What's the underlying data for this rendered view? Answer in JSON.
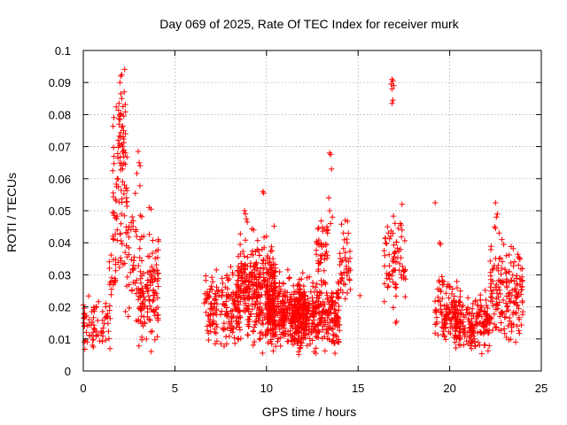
{
  "chart_data": {
    "type": "scatter",
    "title": "Day 069 of 2025, Rate Of TEC Index for receiver murk",
    "xlabel": "GPS time / hours",
    "ylabel": "ROTI / TECUs",
    "xlim": [
      0,
      25
    ],
    "ylim": [
      0,
      0.1
    ],
    "xticks": [
      "0",
      "5",
      "10",
      "15",
      "20",
      "25"
    ],
    "yticks": [
      "0",
      "0.01",
      "0.02",
      "0.03",
      "0.04",
      "0.05",
      "0.06",
      "0.07",
      "0.08",
      "0.09",
      "0.1"
    ],
    "grid": true,
    "marker": "+",
    "color": "#ff0000",
    "clusters": [
      {
        "x_range": [
          0.0,
          1.5
        ],
        "y_mean": 0.015,
        "y_spread": 0.004,
        "count": 70
      },
      {
        "x_range": [
          1.4,
          1.8
        ],
        "y_mean": 0.03,
        "y_spread": 0.004,
        "count": 20
      },
      {
        "x_range": [
          1.6,
          2.4
        ],
        "y_mean": 0.055,
        "y_spread": 0.012,
        "count": 70
      },
      {
        "x_range": [
          1.9,
          2.3
        ],
        "y_mean": 0.078,
        "y_spread": 0.008,
        "count": 25
      },
      {
        "x_range": [
          2.3,
          3.2
        ],
        "y_mean": 0.035,
        "y_spread": 0.01,
        "count": 50
      },
      {
        "x_range": [
          3.0,
          4.1
        ],
        "y_mean": 0.02,
        "y_spread": 0.007,
        "count": 90
      },
      {
        "x_range": [
          3.6,
          4.2
        ],
        "y_mean": 0.032,
        "y_spread": 0.005,
        "count": 30
      },
      {
        "x_range": [
          6.6,
          8.5
        ],
        "y_mean": 0.02,
        "y_spread": 0.005,
        "count": 160
      },
      {
        "x_range": [
          8.4,
          10.5
        ],
        "y_mean": 0.025,
        "y_spread": 0.007,
        "count": 360
      },
      {
        "x_range": [
          10.0,
          12.2
        ],
        "y_mean": 0.018,
        "y_spread": 0.005,
        "count": 340
      },
      {
        "x_range": [
          11.5,
          14.0
        ],
        "y_mean": 0.018,
        "y_spread": 0.005,
        "count": 320
      },
      {
        "x_range": [
          12.7,
          13.4
        ],
        "y_mean": 0.04,
        "y_spread": 0.004,
        "count": 40
      },
      {
        "x_range": [
          14.0,
          14.6
        ],
        "y_mean": 0.034,
        "y_spread": 0.006,
        "count": 40
      },
      {
        "x_range": [
          16.4,
          17.6
        ],
        "y_mean": 0.034,
        "y_spread": 0.006,
        "count": 70
      },
      {
        "x_range": [
          19.2,
          20.6
        ],
        "y_mean": 0.018,
        "y_spread": 0.005,
        "count": 130
      },
      {
        "x_range": [
          20.3,
          22.2
        ],
        "y_mean": 0.015,
        "y_spread": 0.004,
        "count": 170
      },
      {
        "x_range": [
          22.2,
          24.0
        ],
        "y_mean": 0.024,
        "y_spread": 0.007,
        "count": 170
      }
    ],
    "points": [
      [
        2.05,
        0.092
      ],
      [
        2.1,
        0.0925
      ],
      [
        2.0,
        0.09
      ],
      [
        2.05,
        0.0865
      ],
      [
        2.1,
        0.085
      ],
      [
        1.95,
        0.0835
      ],
      [
        2.0,
        0.08
      ],
      [
        1.95,
        0.077
      ],
      [
        2.1,
        0.076
      ],
      [
        2.2,
        0.075
      ],
      [
        2.3,
        0.074
      ],
      [
        1.9,
        0.072
      ],
      [
        2.3,
        0.068
      ],
      [
        3.0,
        0.0685
      ],
      [
        3.05,
        0.065
      ],
      [
        3.1,
        0.064
      ],
      [
        1.85,
        0.06
      ],
      [
        2.25,
        0.058
      ],
      [
        3.6,
        0.051
      ],
      [
        3.7,
        0.0505
      ],
      [
        1.85,
        0.044
      ],
      [
        2.4,
        0.043
      ],
      [
        3.3,
        0.042
      ],
      [
        3.1,
        0.041
      ],
      [
        4.1,
        0.0405
      ],
      [
        16.85,
        0.091
      ],
      [
        16.9,
        0.0905
      ],
      [
        16.8,
        0.0895
      ],
      [
        16.95,
        0.089
      ],
      [
        16.85,
        0.088
      ],
      [
        16.9,
        0.0845
      ],
      [
        16.85,
        0.0835
      ],
      [
        13.45,
        0.068
      ],
      [
        13.5,
        0.0675
      ],
      [
        13.55,
        0.063
      ],
      [
        13.4,
        0.054
      ],
      [
        13.45,
        0.05
      ],
      [
        13.6,
        0.048
      ],
      [
        13.5,
        0.046
      ],
      [
        13.3,
        0.045
      ],
      [
        9.8,
        0.056
      ],
      [
        9.85,
        0.0555
      ],
      [
        8.8,
        0.05
      ],
      [
        8.85,
        0.049
      ],
      [
        8.9,
        0.0475
      ],
      [
        8.95,
        0.0465
      ],
      [
        9.3,
        0.044
      ],
      [
        10.0,
        0.042
      ],
      [
        14.3,
        0.047
      ],
      [
        14.2,
        0.043
      ],
      [
        14.4,
        0.04
      ],
      [
        17.4,
        0.052
      ],
      [
        16.6,
        0.045
      ],
      [
        16.65,
        0.043
      ],
      [
        17.3,
        0.046
      ],
      [
        17.35,
        0.0455
      ],
      [
        17.2,
        0.0445
      ],
      [
        17.4,
        0.044
      ],
      [
        17.1,
        0.0155
      ],
      [
        17.05,
        0.015
      ],
      [
        19.2,
        0.0525
      ],
      [
        19.45,
        0.04
      ],
      [
        19.5,
        0.0395
      ],
      [
        22.5,
        0.0525
      ],
      [
        22.6,
        0.049
      ],
      [
        22.55,
        0.048
      ],
      [
        22.45,
        0.045
      ],
      [
        22.5,
        0.0445
      ],
      [
        22.7,
        0.043
      ],
      [
        22.85,
        0.041
      ],
      [
        22.95,
        0.0395
      ],
      [
        23.1,
        0.036
      ],
      [
        0.5,
        0.008
      ],
      [
        0.55,
        0.0075
      ],
      [
        12.6,
        0.006
      ],
      [
        12.7,
        0.0055
      ],
      [
        7.2,
        0.0085
      ],
      [
        20.6,
        0.008
      ],
      [
        21.0,
        0.0085
      ],
      [
        23.6,
        0.009
      ],
      [
        15.1,
        0.0235
      ]
    ]
  }
}
